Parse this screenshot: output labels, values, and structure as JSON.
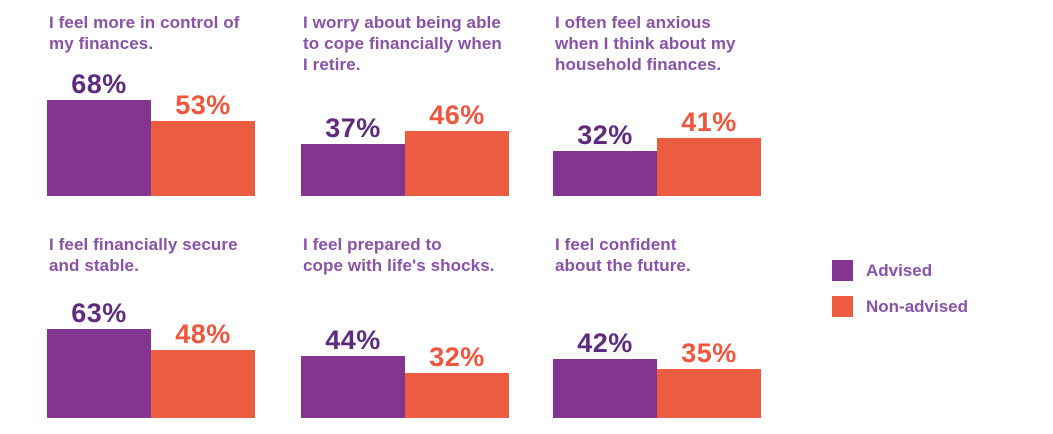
{
  "chart_data": {
    "type": "bar",
    "unit": "%",
    "series_names": [
      "Advised",
      "Non-advised"
    ],
    "legend_position": "right-middle",
    "grid": "off",
    "axes": "none",
    "layout": "2 rows x 3 columns of paired-bar panels",
    "value_range": [
      0,
      100
    ],
    "panels": [
      {
        "title_lines": [
          "I feel more in control of",
          "my finances."
        ],
        "title": "I feel more in control of my finances.",
        "advised": 68,
        "non_advised": 53
      },
      {
        "title_lines": [
          "I worry about being able",
          "to cope financially when",
          "I retire."
        ],
        "title": "I worry about being able to cope financially when I retire.",
        "advised": 37,
        "non_advised": 46
      },
      {
        "title_lines": [
          "I often feel anxious",
          "when I think about my",
          "household finances."
        ],
        "title": "I often feel anxious when I think about my household finances.",
        "advised": 32,
        "non_advised": 41
      },
      {
        "title_lines": [
          "I feel financially secure",
          "and stable."
        ],
        "title": "I feel financially secure and stable.",
        "advised": 63,
        "non_advised": 48
      },
      {
        "title_lines": [
          "I feel prepared to",
          "cope with life's shocks."
        ],
        "title": "I feel prepared to cope with life's shocks.",
        "advised": 44,
        "non_advised": 32
      },
      {
        "title_lines": [
          "I feel confident",
          "about the future."
        ],
        "title": "I feel confident about the future.",
        "advised": 42,
        "non_advised": 35
      }
    ]
  },
  "legend": {
    "items": [
      {
        "label": "Advised",
        "color": "#82368F"
      },
      {
        "label": "Non-advised",
        "color": "#EB5C41"
      }
    ]
  },
  "colors": {
    "advised_bar": "#82368F",
    "non_advised_bar": "#EB5C41",
    "advised_value_label": "#5E2B7F",
    "non_advised_value_label": "#F0563E",
    "panel_title_text": "#8A51A8",
    "legend_text": "#8A51A8",
    "background": "#FFFFFF"
  }
}
